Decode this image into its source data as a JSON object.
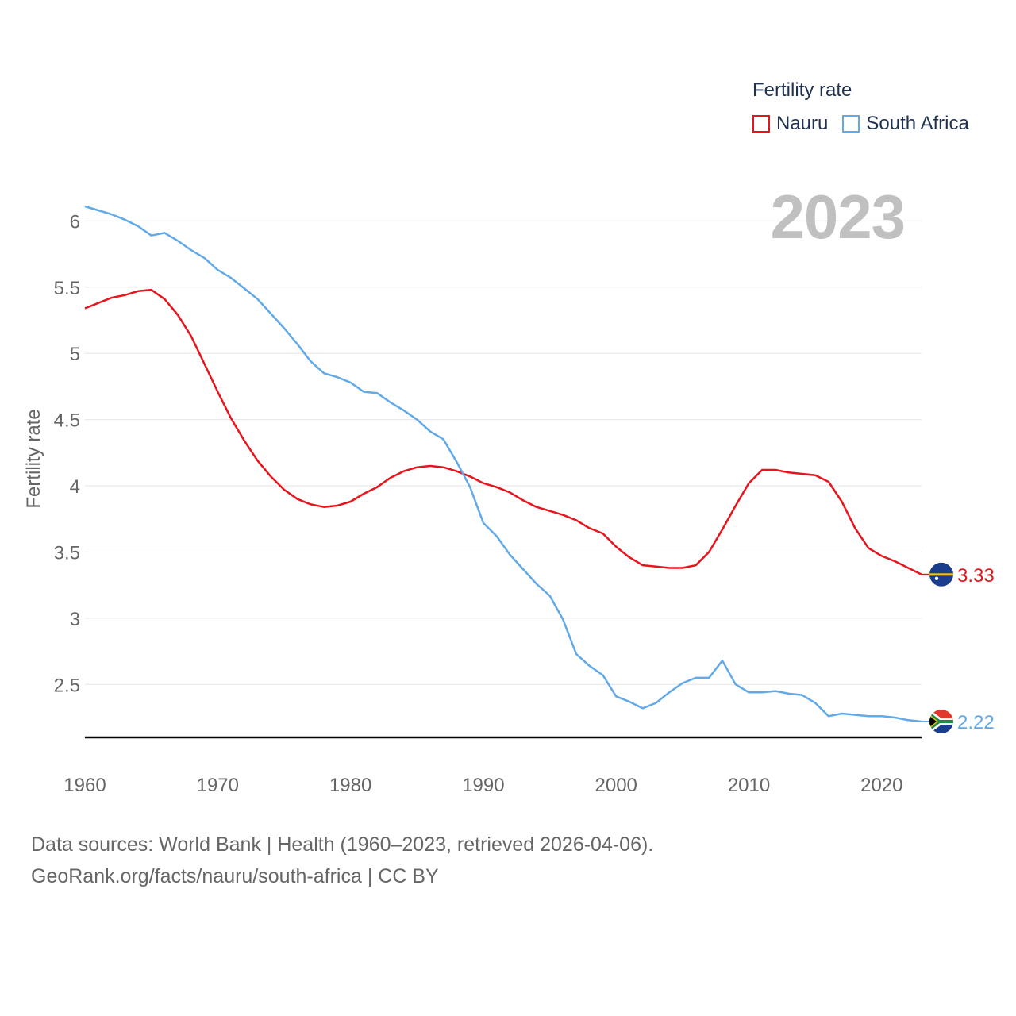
{
  "legend": {
    "title": "Fertility rate",
    "items": [
      {
        "label": "Nauru",
        "color": "#e8141c"
      },
      {
        "label": "South Africa",
        "color": "#62a9e7"
      }
    ]
  },
  "year_label": "2023",
  "footer": {
    "line1": "Data sources: World Bank | Health (1960–2023, retrieved 2026-04-06).",
    "line2": "GeoRank.org/facts/nauru/south-africa | CC BY"
  },
  "chart_data": {
    "type": "line",
    "ylabel": "Fertility rate",
    "xlabel": "",
    "ylim": [
      2.1,
      6.2
    ],
    "xlim": [
      1960,
      2023
    ],
    "yticks": [
      2.5,
      3,
      3.5,
      4,
      4.5,
      5,
      5.5,
      6
    ],
    "ytick_labels": [
      "2.5",
      "3",
      "3.5",
      "4",
      "4.5",
      "5",
      "5.5",
      "6"
    ],
    "xticks": [
      1960,
      1970,
      1980,
      1990,
      2000,
      2010,
      2020
    ],
    "xtick_labels": [
      "1960",
      "1970",
      "1980",
      "1990",
      "2000",
      "2010",
      "2020"
    ],
    "grid": true,
    "x": [
      1960,
      1961,
      1962,
      1963,
      1964,
      1965,
      1966,
      1967,
      1968,
      1969,
      1970,
      1971,
      1972,
      1973,
      1974,
      1975,
      1976,
      1977,
      1978,
      1979,
      1980,
      1981,
      1982,
      1983,
      1984,
      1985,
      1986,
      1987,
      1988,
      1989,
      1990,
      1991,
      1992,
      1993,
      1994,
      1995,
      1996,
      1997,
      1998,
      1999,
      2000,
      2001,
      2002,
      2003,
      2004,
      2005,
      2006,
      2007,
      2008,
      2009,
      2010,
      2011,
      2012,
      2013,
      2014,
      2015,
      2016,
      2017,
      2018,
      2019,
      2020,
      2021,
      2022,
      2023
    ],
    "series": [
      {
        "name": "Nauru",
        "color": "#e8141c",
        "end_label": "3.33",
        "values": [
          5.34,
          5.38,
          5.42,
          5.44,
          5.47,
          5.48,
          5.41,
          5.29,
          5.13,
          4.92,
          4.71,
          4.51,
          4.34,
          4.19,
          4.07,
          3.97,
          3.9,
          3.86,
          3.84,
          3.85,
          3.88,
          3.94,
          3.99,
          4.06,
          4.11,
          4.14,
          4.15,
          4.14,
          4.11,
          4.07,
          4.02,
          3.99,
          3.95,
          3.89,
          3.84,
          3.81,
          3.78,
          3.74,
          3.68,
          3.64,
          3.54,
          3.46,
          3.4,
          3.39,
          3.38,
          3.38,
          3.4,
          3.5,
          3.67,
          3.85,
          4.02,
          4.12,
          4.12,
          4.1,
          4.09,
          4.08,
          4.03,
          3.88,
          3.68,
          3.53,
          3.47,
          3.43,
          3.38,
          3.33
        ]
      },
      {
        "name": "South Africa",
        "color": "#62a9e7",
        "end_label": "2.22",
        "values": [
          6.11,
          6.08,
          6.05,
          6.01,
          5.96,
          5.89,
          5.91,
          5.85,
          5.78,
          5.72,
          5.63,
          5.57,
          5.49,
          5.41,
          5.3,
          5.19,
          5.07,
          4.94,
          4.85,
          4.82,
          4.78,
          4.71,
          4.7,
          4.63,
          4.57,
          4.5,
          4.41,
          4.35,
          4.18,
          3.99,
          3.72,
          3.62,
          3.48,
          3.37,
          3.26,
          3.17,
          2.99,
          2.73,
          2.64,
          2.57,
          2.41,
          2.37,
          2.32,
          2.36,
          2.44,
          2.51,
          2.55,
          2.55,
          2.68,
          2.5,
          2.44,
          2.44,
          2.45,
          2.43,
          2.42,
          2.36,
          2.26,
          2.28,
          2.27,
          2.26,
          2.26,
          2.25,
          2.23,
          2.22
        ]
      }
    ]
  }
}
